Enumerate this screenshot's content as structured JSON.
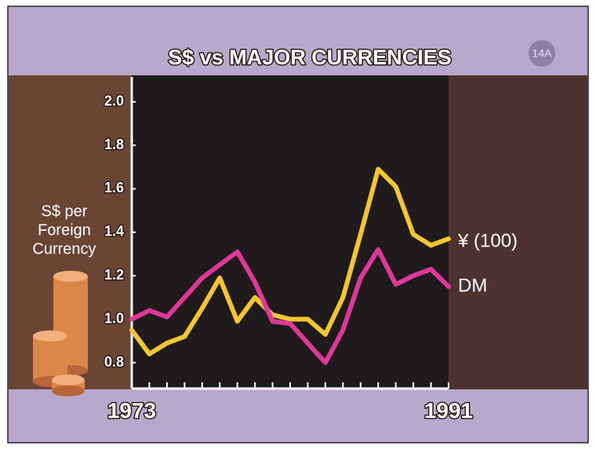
{
  "chart_data": {
    "type": "line",
    "title": "S$ vs MAJOR CURRENCIES",
    "badge": "14A",
    "y_label": [
      "S$ per",
      "Foreign",
      "Currency"
    ],
    "x": [
      1973,
      1974,
      1975,
      1976,
      1977,
      1978,
      1979,
      1980,
      1981,
      1982,
      1983,
      1984,
      1985,
      1986,
      1987,
      1988,
      1989,
      1990,
      1991
    ],
    "xlim": [
      1973,
      1991
    ],
    "xticks": [
      1973,
      1991
    ],
    "ylim": [
      0.7,
      2.1
    ],
    "yticks": [
      {
        "value": 0.8,
        "label": "0.8"
      },
      {
        "value": 1.0,
        "label": "1.0"
      },
      {
        "value": 1.2,
        "label": "1.2"
      },
      {
        "value": 1.4,
        "label": "1.4"
      },
      {
        "value": 1.6,
        "label": "1.6"
      },
      {
        "value": 1.8,
        "label": "1.8"
      },
      {
        "value": 2.0,
        "label": "2.0"
      }
    ],
    "series": [
      {
        "name": "¥ (100)",
        "color": "#f2c531",
        "values": [
          0.95,
          0.84,
          0.89,
          0.92,
          1.05,
          1.19,
          0.99,
          1.1,
          1.02,
          1.0,
          1.0,
          0.93,
          1.1,
          1.39,
          1.69,
          1.61,
          1.39,
          1.34,
          1.37
        ]
      },
      {
        "name": "DM",
        "color": "#e0389a",
        "values": [
          1.0,
          1.04,
          1.01,
          1.1,
          1.19,
          1.25,
          1.31,
          1.17,
          0.99,
          0.98,
          0.89,
          0.8,
          0.95,
          1.19,
          1.32,
          1.16,
          1.2,
          1.23,
          1.15
        ]
      }
    ]
  }
}
